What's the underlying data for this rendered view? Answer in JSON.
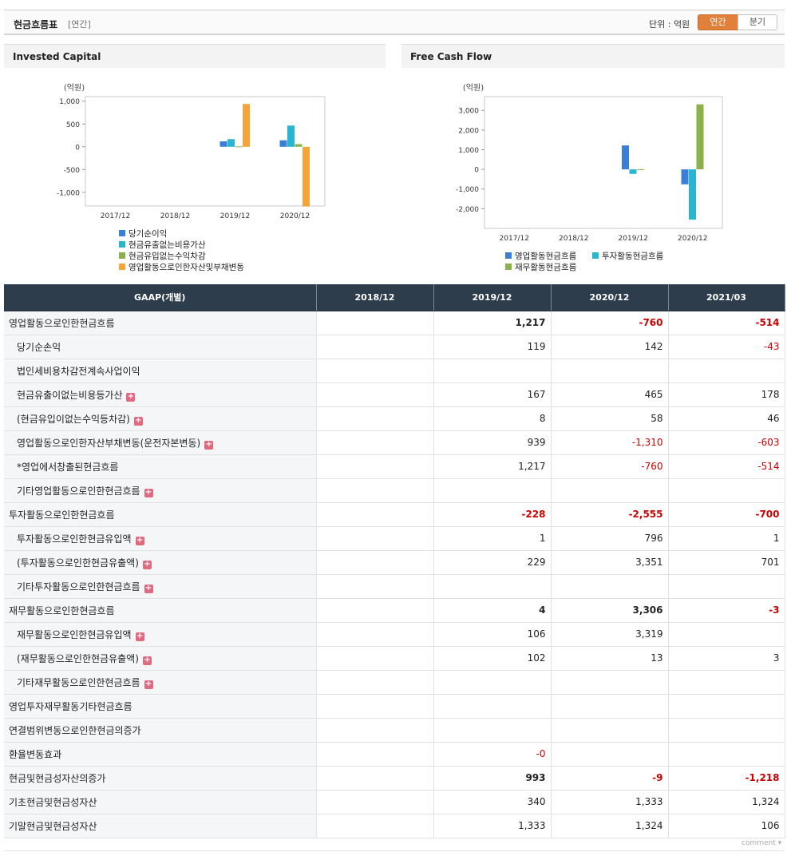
{
  "header": {
    "title": "현금흐름표",
    "subtitle": "[연간]",
    "unit_label": "단위 : 억원",
    "tab_annual": "연간",
    "tab_quarter": "분기"
  },
  "charts": {
    "left_title": "Invested Capital",
    "right_title": "Free Cash Flow"
  },
  "chart_data": [
    {
      "type": "bar",
      "title": "Invested Capital",
      "ylabel": "(억원)",
      "ylim": [
        -1300,
        1100
      ],
      "yticks": [
        1000,
        500,
        0,
        -500,
        -1000
      ],
      "ytick_labels": [
        "1,000",
        "500",
        "0",
        "-500",
        "-1,000"
      ],
      "categories": [
        "2017/12",
        "2018/12",
        "2019/12",
        "2020/12"
      ],
      "legend_position": "bottom",
      "series": [
        {
          "name": "당기순이익",
          "color": "#3a7fd5",
          "values": [
            null,
            null,
            119,
            142
          ]
        },
        {
          "name": "현금유출없는비용가산",
          "color": "#27b5cf",
          "values": [
            null,
            null,
            167,
            465
          ]
        },
        {
          "name": "현금유입없는수익차감",
          "color": "#8bb24a",
          "values": [
            null,
            null,
            8,
            58
          ]
        },
        {
          "name": "영업활동으로인한자산및부채변동",
          "color": "#f5a43a",
          "values": [
            null,
            null,
            939,
            -1310
          ]
        }
      ]
    },
    {
      "type": "bar",
      "title": "Free Cash Flow",
      "ylabel": "(억원)",
      "ylim": [
        -3000,
        3700
      ],
      "yticks": [
        3000,
        2000,
        1000,
        0,
        -1000,
        -2000
      ],
      "ytick_labels": [
        "3,000",
        "2,000",
        "1,000",
        "0",
        "-1,000",
        "-2,000"
      ],
      "categories": [
        "2017/12",
        "2018/12",
        "2019/12",
        "2020/12"
      ],
      "legend_position": "bottom",
      "series": [
        {
          "name": "영업활동현금흐름",
          "color": "#3a7fd5",
          "values": [
            null,
            null,
            1217,
            -760
          ]
        },
        {
          "name": "투자활동현금흐름",
          "color": "#27b5cf",
          "values": [
            null,
            null,
            -228,
            -2555
          ]
        },
        {
          "name": "재무활동현금흐름",
          "color": "#8bb24a",
          "values": [
            null,
            null,
            4,
            3306
          ]
        }
      ]
    }
  ],
  "table": {
    "head": [
      "GAAP(개별)",
      "2018/12",
      "2019/12",
      "2020/12",
      "2021/03"
    ],
    "rows": [
      {
        "label": "영업활동으로인한현금흐름",
        "level": "main",
        "plus": false,
        "values": [
          "",
          "1,217",
          "-760",
          "-514"
        ]
      },
      {
        "label": "당기순손익",
        "level": "sub",
        "plus": false,
        "values": [
          "",
          "119",
          "142",
          "-43"
        ]
      },
      {
        "label": "법인세비용차감전계속사업이익",
        "level": "sub",
        "plus": false,
        "values": [
          "",
          "",
          "",
          ""
        ]
      },
      {
        "label": "현금유출이없는비용등가산",
        "level": "sub",
        "plus": true,
        "values": [
          "",
          "167",
          "465",
          "178"
        ]
      },
      {
        "label": "(현금유입이없는수익등차감)",
        "level": "sub",
        "plus": true,
        "values": [
          "",
          "8",
          "58",
          "46"
        ]
      },
      {
        "label": "영업활동으로인한자산부채변동(운전자본변동)",
        "level": "sub",
        "plus": true,
        "values": [
          "",
          "939",
          "-1,310",
          "-603"
        ]
      },
      {
        "label": "*영업에서창출된현금흐름",
        "level": "sub",
        "plus": false,
        "values": [
          "",
          "1,217",
          "-760",
          "-514"
        ]
      },
      {
        "label": "기타영업활동으로인한현금흐름",
        "level": "sub",
        "plus": true,
        "values": [
          "",
          "",
          "",
          ""
        ]
      },
      {
        "label": "투자활동으로인한현금흐름",
        "level": "main",
        "plus": false,
        "values": [
          "",
          "-228",
          "-2,555",
          "-700"
        ]
      },
      {
        "label": "투자활동으로인한현금유입액",
        "level": "sub",
        "plus": true,
        "values": [
          "",
          "1",
          "796",
          "1"
        ]
      },
      {
        "label": "(투자활동으로인한현금유출액)",
        "level": "sub",
        "plus": true,
        "values": [
          "",
          "229",
          "3,351",
          "701"
        ]
      },
      {
        "label": "기타투자활동으로인한현금흐름",
        "level": "sub",
        "plus": true,
        "values": [
          "",
          "",
          "",
          ""
        ]
      },
      {
        "label": "재무활동으로인한현금흐름",
        "level": "main",
        "plus": false,
        "values": [
          "",
          "4",
          "3,306",
          "-3"
        ]
      },
      {
        "label": "재무활동으로인한현금유입액",
        "level": "sub",
        "plus": true,
        "values": [
          "",
          "106",
          "3,319",
          ""
        ]
      },
      {
        "label": "(재무활동으로인한현금유출액)",
        "level": "sub",
        "plus": true,
        "values": [
          "",
          "102",
          "13",
          "3"
        ]
      },
      {
        "label": "기타재무활동으로인한현금흐름",
        "level": "sub",
        "plus": true,
        "values": [
          "",
          "",
          "",
          ""
        ]
      },
      {
        "label": "영업투자재무활동기타현금흐름",
        "level": "plain",
        "plus": false,
        "values": [
          "",
          "",
          "",
          ""
        ]
      },
      {
        "label": "연결범위변동으로인한현금의증가",
        "level": "plain",
        "plus": false,
        "values": [
          "",
          "",
          "",
          ""
        ]
      },
      {
        "label": "환율변동효과",
        "level": "plain",
        "plus": false,
        "values": [
          "",
          "-0",
          "",
          ""
        ]
      },
      {
        "label": "현금및현금성자산의증가",
        "level": "main",
        "plus": false,
        "values": [
          "",
          "993",
          "-9",
          "-1,218"
        ]
      },
      {
        "label": "기초현금및현금성자산",
        "level": "plain",
        "plus": false,
        "values": [
          "",
          "340",
          "1,333",
          "1,324"
        ]
      },
      {
        "label": "기말현금및현금성자산",
        "level": "plain",
        "plus": false,
        "values": [
          "",
          "1,333",
          "1,324",
          "106"
        ]
      }
    ]
  },
  "footer": {
    "comment_label": "comment ▾"
  }
}
